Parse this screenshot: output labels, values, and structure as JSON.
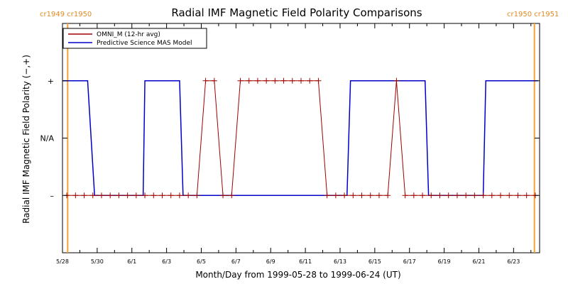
{
  "chart_data": {
    "type": "line",
    "title": "Radial IMF Magnetic Field Polarity Comparisons",
    "xlabel": "Month/Day from 1999-05-28 to 1999-06-24 (UT)",
    "ylabel": "Radial IMF Magnetic Field Polarity (−,+)",
    "x_tick_labels": [
      "5/28",
      "5/30",
      "6/1",
      "6/3",
      "6/5",
      "6/7",
      "6/9",
      "6/11",
      "6/13",
      "6/15",
      "6/17",
      "6/19",
      "6/21",
      "6/23"
    ],
    "y_tick_labels": [
      "+",
      "N/A",
      "–"
    ],
    "y_categories": [
      1,
      0,
      -1
    ],
    "xlim": [
      0,
      27.5
    ],
    "ylim": [
      -2,
      2
    ],
    "carrington_labels": {
      "left": "cr1949 cr1950",
      "right": "cr1950 cr1951"
    },
    "carrington_boundaries_days": [
      0.3,
      27.2
    ],
    "series": [
      {
        "name": "OMNI_M (12-hr avg)",
        "color": "#a00000",
        "marker": "+",
        "x": [
          0.25,
          0.75,
          1.25,
          1.75,
          2.25,
          2.75,
          3.25,
          3.75,
          4.25,
          4.75,
          5.25,
          5.75,
          6.25,
          6.75,
          7.25,
          7.75,
          8.25,
          8.75,
          9.25,
          9.75,
          10.25,
          10.75,
          11.25,
          11.75,
          12.25,
          12.75,
          13.25,
          13.75,
          14.25,
          14.75,
          15.25,
          15.75,
          16.25,
          16.75,
          17.25,
          17.75,
          18.25,
          18.75,
          19.25,
          19.75,
          20.25,
          20.75,
          21.25,
          21.75,
          22.25,
          22.75,
          23.25,
          23.75,
          24.25,
          24.75,
          25.25,
          25.75,
          26.25,
          26.75,
          27.25
        ],
        "y": [
          -1,
          -1,
          -1,
          -1,
          -1,
          -1,
          -1,
          -1,
          -1,
          -1,
          -1,
          -1,
          -1,
          -1,
          -1,
          -1,
          1,
          1,
          -1,
          -1,
          1,
          1,
          1,
          1,
          1,
          1,
          1,
          1,
          1,
          1,
          -1,
          -1,
          -1,
          -1,
          -1,
          -1,
          -1,
          -1,
          1,
          -1,
          -1,
          -1,
          -1,
          -1,
          -1,
          -1,
          -1,
          -1,
          -1,
          -1,
          -1,
          -1,
          -1,
          -1,
          -1
        ]
      },
      {
        "name": "Predictive Science MAS Model",
        "color": "#0000c8",
        "x": [
          0,
          1.45,
          1.85,
          4.65,
          4.75,
          6.75,
          6.95,
          16.4,
          16.6,
          20.9,
          21.1,
          24.25,
          24.4,
          27.4
        ],
        "y": [
          1,
          1,
          -1,
          -1,
          1,
          1,
          -1,
          -1,
          1,
          1,
          -1,
          -1,
          1,
          1
        ]
      }
    ],
    "grid": false,
    "legend_position": "top-left"
  }
}
